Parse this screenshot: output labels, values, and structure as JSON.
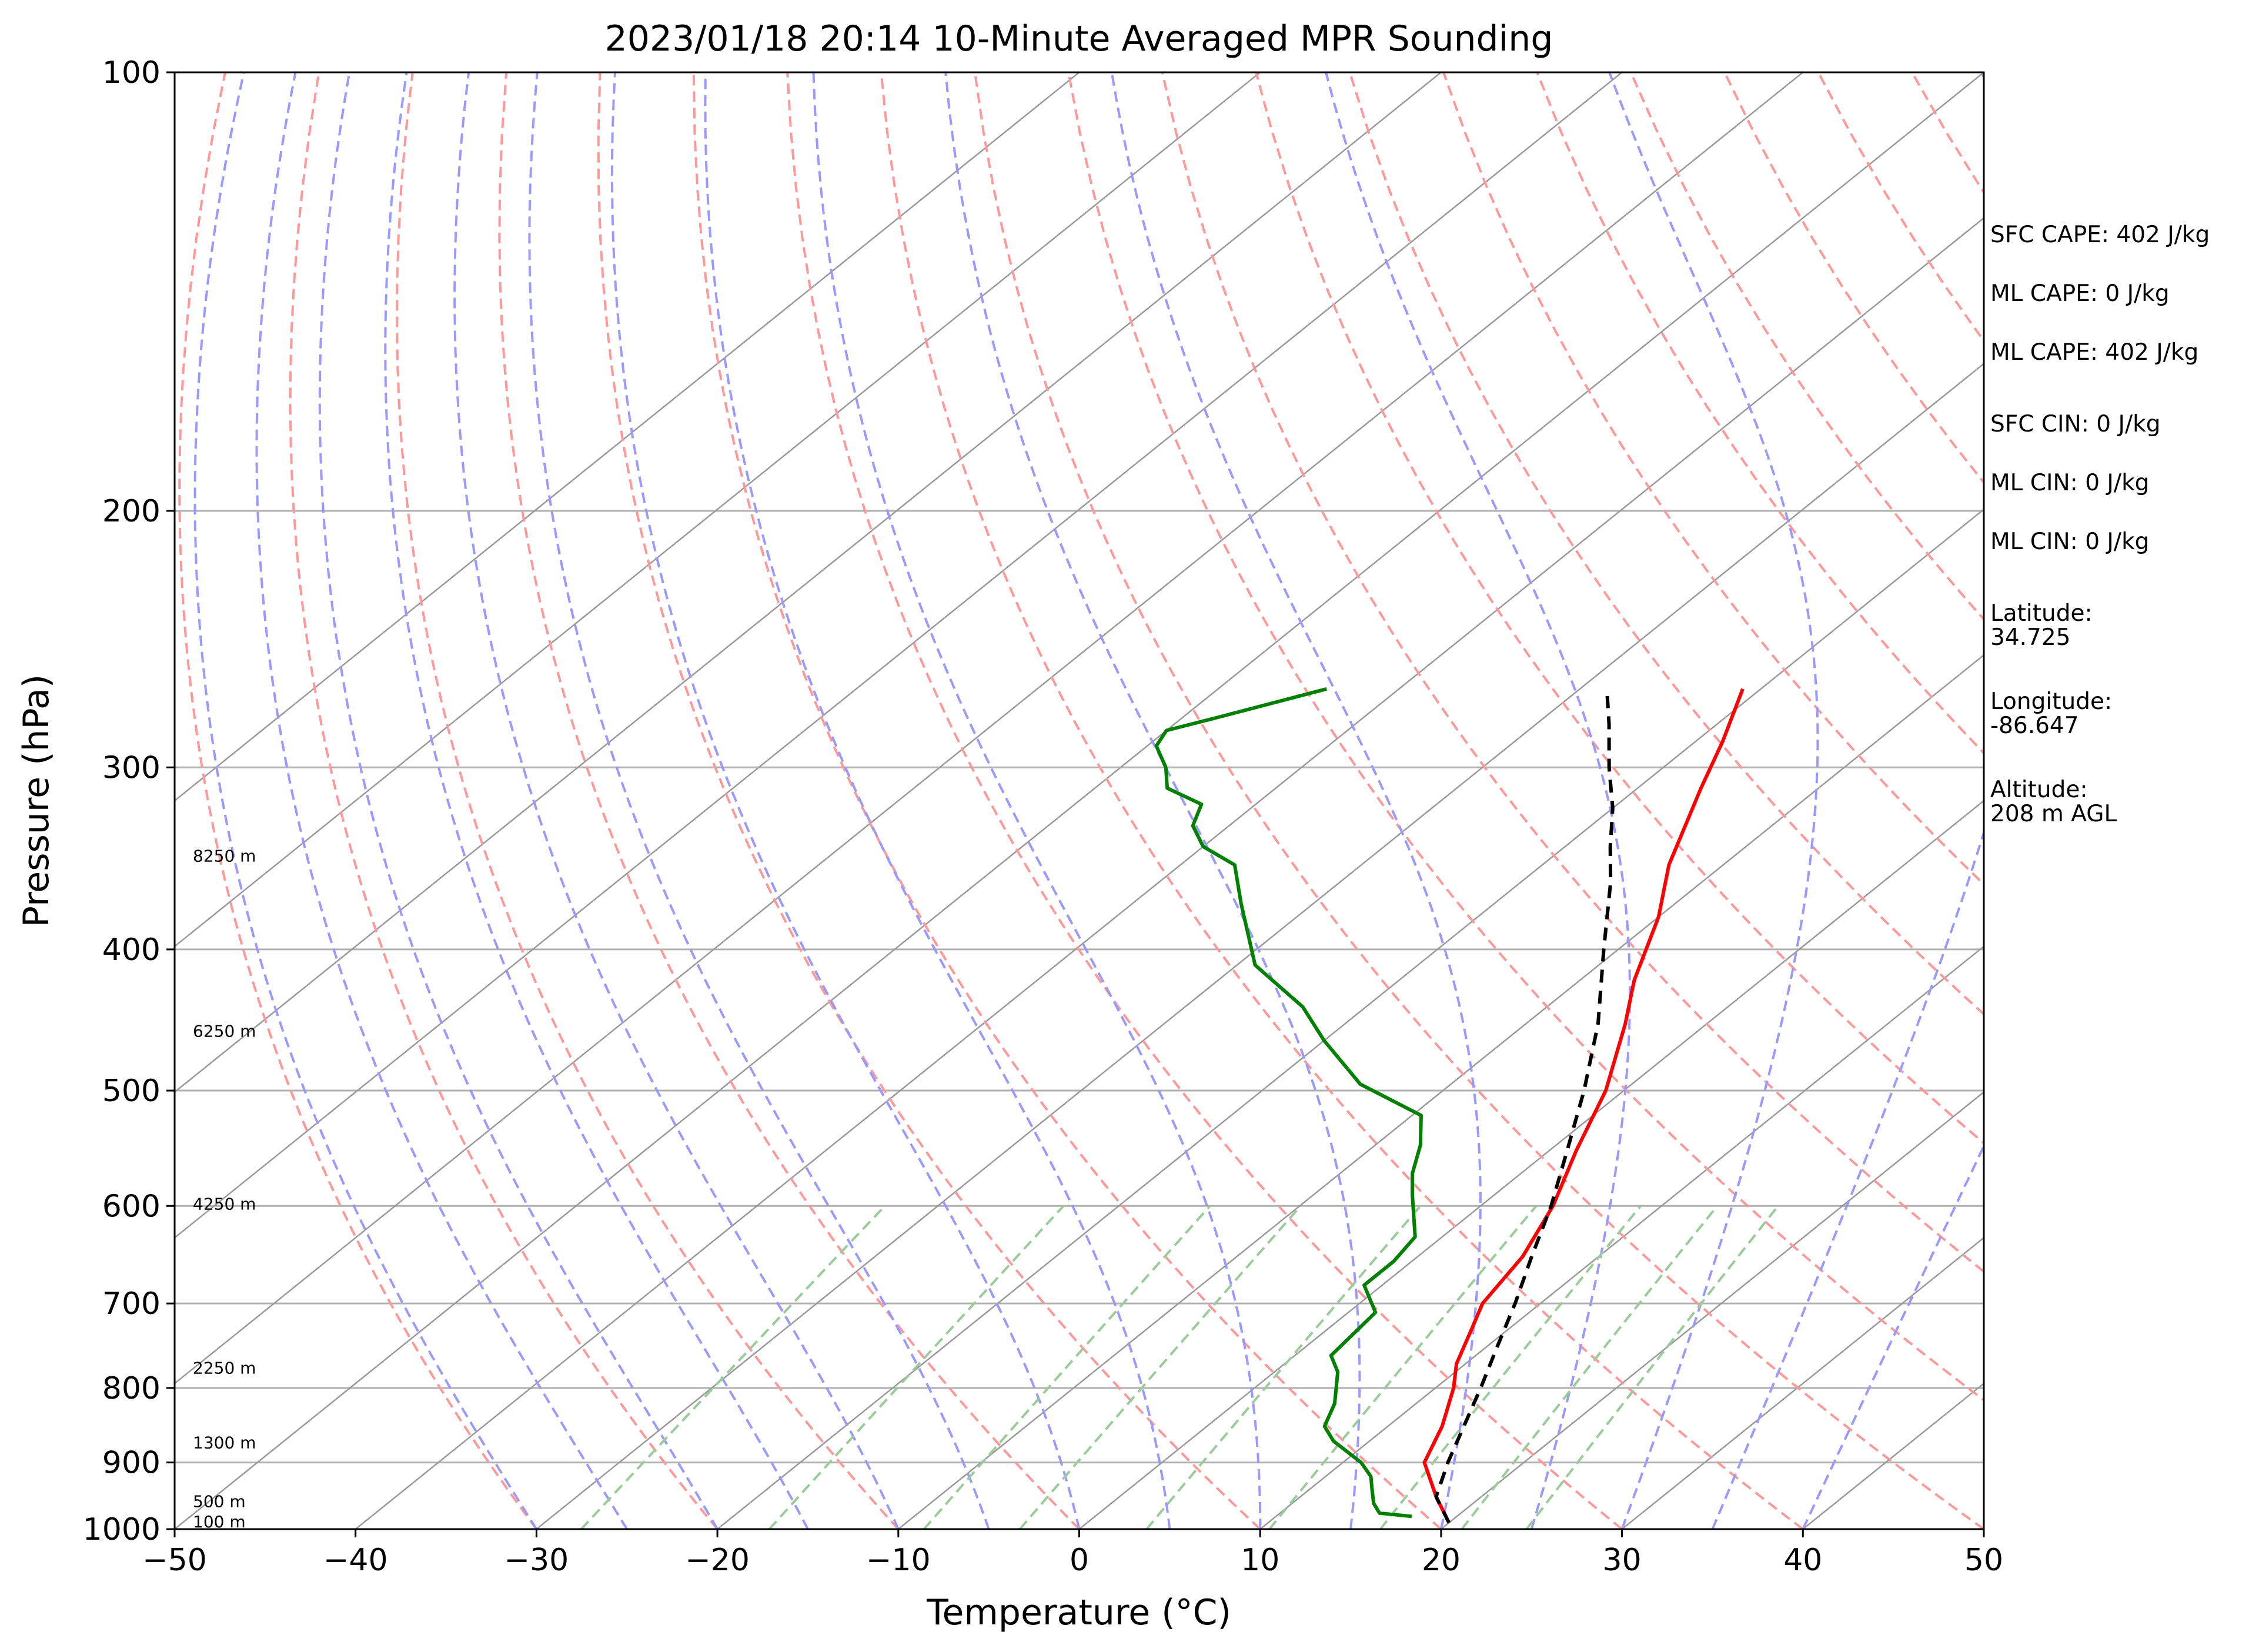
{
  "chart_data": {
    "type": "line",
    "title": "2023/01/18 20:14 10-Minute Averaged MPR Sounding",
    "xlabel": "Temperature (°C)",
    "ylabel": "Pressure (hPa)",
    "xlim": [
      -50,
      50
    ],
    "ylim": [
      1000,
      100
    ],
    "y_scale": "log",
    "skew_t": true,
    "x_ticks": [
      "−50",
      "−40",
      "−30",
      "−20",
      "−10",
      "0",
      "10",
      "20",
      "30",
      "40",
      "50"
    ],
    "y_ticks": [
      "100",
      "200",
      "300",
      "400",
      "500",
      "600",
      "700",
      "800",
      "900",
      "1000"
    ],
    "grid": true,
    "height_labels": [
      {
        "text": "8250 m",
        "pressure": 345
      },
      {
        "text": "6250 m",
        "pressure": 455
      },
      {
        "text": "4250 m",
        "pressure": 598
      },
      {
        "text": "2250 m",
        "pressure": 775
      },
      {
        "text": "1300 m",
        "pressure": 872
      },
      {
        "text": "500 m",
        "pressure": 957
      },
      {
        "text": "100 m",
        "pressure": 988
      }
    ],
    "series": [
      {
        "color": "#ff0000",
        "style": "solid",
        "points": [
          [
            20.0,
            990
          ],
          [
            17.5,
            950
          ],
          [
            14.5,
            900
          ],
          [
            13.0,
            850
          ],
          [
            11.0,
            800
          ],
          [
            9.5,
            770
          ],
          [
            8.0,
            730
          ],
          [
            6.8,
            700
          ],
          [
            5.8,
            650
          ],
          [
            4.0,
            600
          ],
          [
            1.5,
            550
          ],
          [
            -1.0,
            500
          ],
          [
            -4.5,
            450
          ],
          [
            -7.0,
            420
          ],
          [
            -10.0,
            380
          ],
          [
            -13.0,
            350
          ],
          [
            -16.5,
            310
          ],
          [
            -18.5,
            288
          ],
          [
            -21.0,
            265
          ]
        ]
      },
      {
        "color": "#008000",
        "style": "solid",
        "points": [
          [
            17.5,
            980
          ],
          [
            15.5,
            975
          ],
          [
            14.5,
            960
          ],
          [
            13.5,
            940
          ],
          [
            12.5,
            920
          ],
          [
            11.0,
            900
          ],
          [
            8.0,
            870
          ],
          [
            6.5,
            850
          ],
          [
            5.5,
            820
          ],
          [
            3.5,
            780
          ],
          [
            2.0,
            760
          ],
          [
            1.5,
            710
          ],
          [
            -1.0,
            680
          ],
          [
            -1.0,
            655
          ],
          [
            -1.5,
            630
          ],
          [
            -4.5,
            590
          ],
          [
            -6.0,
            570
          ],
          [
            -7.5,
            545
          ],
          [
            -9.5,
            520
          ],
          [
            -15.0,
            495
          ],
          [
            -20.0,
            462
          ],
          [
            -23.5,
            438
          ],
          [
            -27.0,
            420
          ],
          [
            -29.0,
            410
          ],
          [
            -34.0,
            372
          ],
          [
            -37.0,
            350
          ],
          [
            -40.0,
            340
          ],
          [
            -42.0,
            329
          ],
          [
            -43.0,
            318
          ],
          [
            -46.0,
            310
          ],
          [
            -47.5,
            300
          ],
          [
            -49.5,
            290
          ],
          [
            -50.0,
            283
          ],
          [
            -48.0,
            277
          ],
          [
            -44.0,
            265
          ]
        ]
      },
      {
        "color": "#000000",
        "style": "dashed",
        "points": [
          [
            20.0,
            990
          ],
          [
            17.5,
            950
          ],
          [
            15.8,
            900
          ],
          [
            14.2,
            850
          ],
          [
            12.5,
            800
          ],
          [
            10.6,
            750
          ],
          [
            8.6,
            700
          ],
          [
            6.3,
            650
          ],
          [
            3.9,
            600
          ],
          [
            1.0,
            550
          ],
          [
            -2.2,
            500
          ],
          [
            -6.0,
            450
          ],
          [
            -10.8,
            400
          ],
          [
            -15.0,
            360
          ],
          [
            -17.5,
            340
          ],
          [
            -20.0,
            320
          ],
          [
            -23.0,
            300
          ],
          [
            -26.0,
            280
          ],
          [
            -28.0,
            268
          ]
        ]
      }
    ]
  },
  "info": {
    "sfc_cape": "SFC CAPE: 402 J/kg",
    "ml_cape_1": "ML CAPE: 0 J/kg",
    "ml_cape_2": "ML CAPE: 402 J/kg",
    "sfc_cin": "SFC CIN: 0 J/kg",
    "ml_cin_1": "ML CIN: 0 J/kg",
    "ml_cin_2": "ML CIN: 0 J/kg",
    "latitude": "Latitude:\n34.725",
    "longitude": "Longitude:\n-86.647",
    "altitude": "Altitude:\n208 m AGL"
  },
  "colors": {
    "temperature": "#ff0000",
    "dewpoint": "#008000",
    "parcel": "#000000",
    "dry_adiabat": "#ff9999",
    "moist_adiabat": "#9999ff",
    "mixing_ratio": "#99cc99",
    "isotherm": "#999999"
  }
}
